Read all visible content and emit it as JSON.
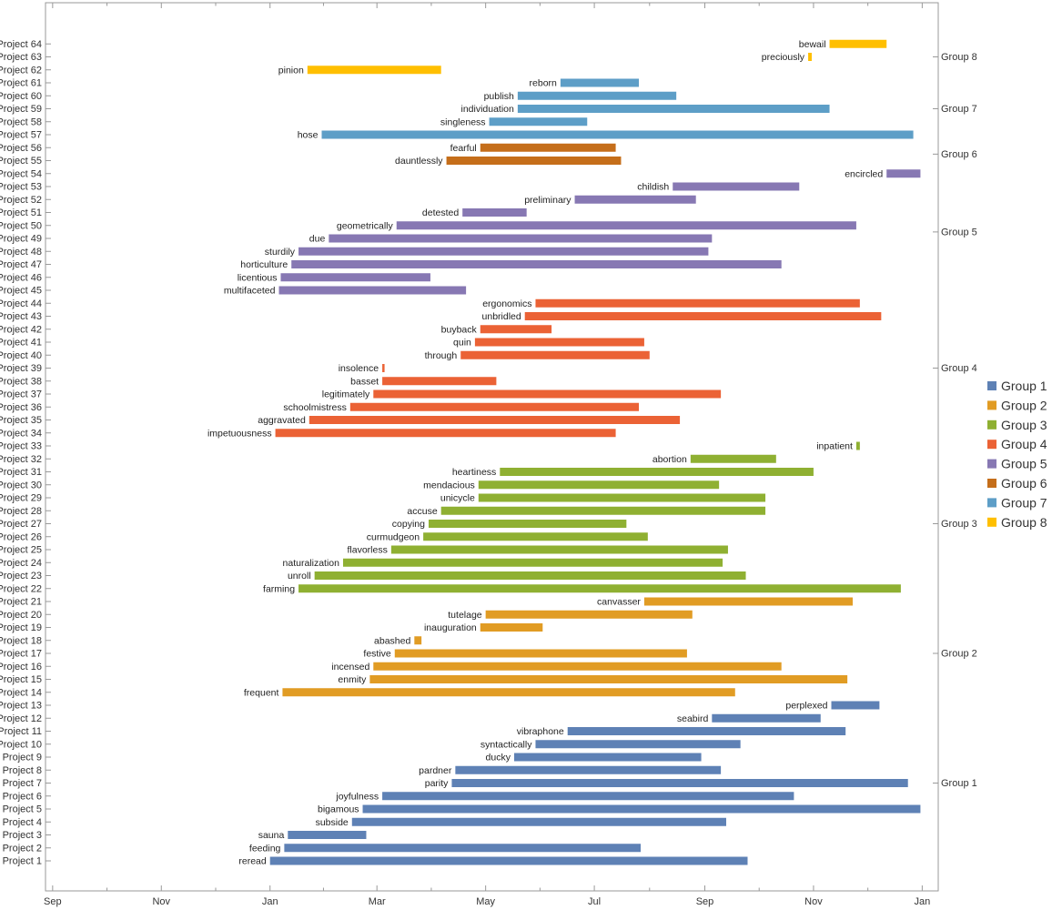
{
  "chart_data": {
    "type": "gantt",
    "title": "",
    "x_axis": {
      "type": "date",
      "range": [
        "2019-08-28",
        "2021-01-10"
      ],
      "tick_labels": [
        {
          "date": "2019-09-01",
          "label": "Sep"
        },
        {
          "date": "2019-11-01",
          "label": "Nov"
        },
        {
          "date": "2020-01-01",
          "label": "Jan"
        },
        {
          "date": "2020-03-01",
          "label": "Mar"
        },
        {
          "date": "2020-05-01",
          "label": "May"
        },
        {
          "date": "2020-07-01",
          "label": "Jul"
        },
        {
          "date": "2020-09-01",
          "label": "Sep"
        },
        {
          "date": "2020-11-01",
          "label": "Nov"
        },
        {
          "date": "2021-01-01",
          "label": "Jan"
        }
      ]
    },
    "groups": [
      {
        "name": "Group 1",
        "color": "#5e81b5"
      },
      {
        "name": "Group 2",
        "color": "#e19c24"
      },
      {
        "name": "Group 3",
        "color": "#8fb032"
      },
      {
        "name": "Group 4",
        "color": "#eb6235"
      },
      {
        "name": "Group 5",
        "color": "#8778b3"
      },
      {
        "name": "Group 6",
        "color": "#c56e1a"
      },
      {
        "name": "Group 7",
        "color": "#5d9ec7"
      },
      {
        "name": "Group 8",
        "color": "#ffbf00"
      }
    ],
    "tasks": [
      {
        "project": "Project 1",
        "label": "reread",
        "group": 1,
        "start": "2020-01-01",
        "end": "2020-09-25"
      },
      {
        "project": "Project 2",
        "label": "feeding",
        "group": 1,
        "start": "2020-01-09",
        "end": "2020-07-27"
      },
      {
        "project": "Project 3",
        "label": "sauna",
        "group": 1,
        "start": "2020-01-11",
        "end": "2020-02-24"
      },
      {
        "project": "Project 4",
        "label": "subside",
        "group": 1,
        "start": "2020-02-16",
        "end": "2020-09-13"
      },
      {
        "project": "Project 5",
        "label": "bigamous",
        "group": 1,
        "start": "2020-02-22",
        "end": "2020-12-31"
      },
      {
        "project": "Project 6",
        "label": "joyfulness",
        "group": 1,
        "start": "2020-03-04",
        "end": "2020-10-21"
      },
      {
        "project": "Project 7",
        "label": "parity",
        "group": 1,
        "start": "2020-04-12",
        "end": "2020-12-24"
      },
      {
        "project": "Project 8",
        "label": "pardner",
        "group": 1,
        "start": "2020-04-14",
        "end": "2020-09-10"
      },
      {
        "project": "Project 9",
        "label": "ducky",
        "group": 1,
        "start": "2020-05-17",
        "end": "2020-08-30"
      },
      {
        "project": "Project 10",
        "label": "syntactically",
        "group": 1,
        "start": "2020-05-29",
        "end": "2020-09-21"
      },
      {
        "project": "Project 11",
        "label": "vibraphone",
        "group": 1,
        "start": "2020-06-16",
        "end": "2020-11-19"
      },
      {
        "project": "Project 12",
        "label": "seabird",
        "group": 1,
        "start": "2020-09-05",
        "end": "2020-11-05"
      },
      {
        "project": "Project 13",
        "label": "perplexed",
        "group": 1,
        "start": "2020-11-11",
        "end": "2020-12-08"
      },
      {
        "project": "Project 14",
        "label": "frequent",
        "group": 2,
        "start": "2020-01-08",
        "end": "2020-09-18"
      },
      {
        "project": "Project 15",
        "label": "enmity",
        "group": 2,
        "start": "2020-02-26",
        "end": "2020-11-20"
      },
      {
        "project": "Project 16",
        "label": "incensed",
        "group": 2,
        "start": "2020-02-28",
        "end": "2020-10-14"
      },
      {
        "project": "Project 17",
        "label": "festive",
        "group": 2,
        "start": "2020-03-11",
        "end": "2020-08-22"
      },
      {
        "project": "Project 18",
        "label": "abashed",
        "group": 2,
        "start": "2020-03-22",
        "end": "2020-03-26"
      },
      {
        "project": "Project 19",
        "label": "inauguration",
        "group": 2,
        "start": "2020-04-28",
        "end": "2020-06-02"
      },
      {
        "project": "Project 20",
        "label": "tutelage",
        "group": 2,
        "start": "2020-05-01",
        "end": "2020-08-25"
      },
      {
        "project": "Project 21",
        "label": "canvasser",
        "group": 2,
        "start": "2020-07-29",
        "end": "2020-11-23"
      },
      {
        "project": "Project 22",
        "label": "farming",
        "group": 3,
        "start": "2020-01-17",
        "end": "2020-12-20"
      },
      {
        "project": "Project 23",
        "label": "unroll",
        "group": 3,
        "start": "2020-01-26",
        "end": "2020-09-24"
      },
      {
        "project": "Project 24",
        "label": "naturalization",
        "group": 3,
        "start": "2020-02-11",
        "end": "2020-09-11"
      },
      {
        "project": "Project 25",
        "label": "flavorless",
        "group": 3,
        "start": "2020-03-09",
        "end": "2020-09-14"
      },
      {
        "project": "Project 26",
        "label": "curmudgeon",
        "group": 3,
        "start": "2020-03-27",
        "end": "2020-07-31"
      },
      {
        "project": "Project 27",
        "label": "copying",
        "group": 3,
        "start": "2020-03-30",
        "end": "2020-07-19"
      },
      {
        "project": "Project 28",
        "label": "accuse",
        "group": 3,
        "start": "2020-04-06",
        "end": "2020-10-05"
      },
      {
        "project": "Project 29",
        "label": "unicycle",
        "group": 3,
        "start": "2020-04-27",
        "end": "2020-10-05"
      },
      {
        "project": "Project 30",
        "label": "mendacious",
        "group": 3,
        "start": "2020-04-27",
        "end": "2020-09-09"
      },
      {
        "project": "Project 31",
        "label": "heartiness",
        "group": 3,
        "start": "2020-05-09",
        "end": "2020-11-01"
      },
      {
        "project": "Project 32",
        "label": "abortion",
        "group": 3,
        "start": "2020-08-24",
        "end": "2020-10-11"
      },
      {
        "project": "Project 33",
        "label": "inpatient",
        "group": 3,
        "start": "2020-11-25",
        "end": "2020-11-27"
      },
      {
        "project": "Project 34",
        "label": "impetuousness",
        "group": 4,
        "start": "2020-01-04",
        "end": "2020-07-13"
      },
      {
        "project": "Project 35",
        "label": "aggravated",
        "group": 4,
        "start": "2020-01-23",
        "end": "2020-08-18"
      },
      {
        "project": "Project 36",
        "label": "schoolmistress",
        "group": 4,
        "start": "2020-02-15",
        "end": "2020-07-26"
      },
      {
        "project": "Project 37",
        "label": "legitimately",
        "group": 4,
        "start": "2020-02-28",
        "end": "2020-09-10"
      },
      {
        "project": "Project 38",
        "label": "basset",
        "group": 4,
        "start": "2020-03-04",
        "end": "2020-05-07"
      },
      {
        "project": "Project 39",
        "label": "insolence",
        "group": 4,
        "start": "2020-03-04",
        "end": "2020-03-05"
      },
      {
        "project": "Project 40",
        "label": "through",
        "group": 4,
        "start": "2020-04-17",
        "end": "2020-08-01"
      },
      {
        "project": "Project 41",
        "label": "quin",
        "group": 4,
        "start": "2020-04-25",
        "end": "2020-07-29"
      },
      {
        "project": "Project 42",
        "label": "buyback",
        "group": 4,
        "start": "2020-04-28",
        "end": "2020-06-07"
      },
      {
        "project": "Project 43",
        "label": "unbridled",
        "group": 4,
        "start": "2020-05-23",
        "end": "2020-12-09"
      },
      {
        "project": "Project 44",
        "label": "ergonomics",
        "group": 4,
        "start": "2020-05-29",
        "end": "2020-11-27"
      },
      {
        "project": "Project 45",
        "label": "multifaceted",
        "group": 5,
        "start": "2020-01-06",
        "end": "2020-04-20"
      },
      {
        "project": "Project 46",
        "label": "licentious",
        "group": 5,
        "start": "2020-01-07",
        "end": "2020-03-31"
      },
      {
        "project": "Project 47",
        "label": "horticulture",
        "group": 5,
        "start": "2020-01-13",
        "end": "2020-10-14"
      },
      {
        "project": "Project 48",
        "label": "sturdily",
        "group": 5,
        "start": "2020-01-17",
        "end": "2020-09-03"
      },
      {
        "project": "Project 49",
        "label": "due",
        "group": 5,
        "start": "2020-02-03",
        "end": "2020-09-05"
      },
      {
        "project": "Project 50",
        "label": "geometrically",
        "group": 5,
        "start": "2020-03-12",
        "end": "2020-11-25"
      },
      {
        "project": "Project 51",
        "label": "detested",
        "group": 5,
        "start": "2020-04-18",
        "end": "2020-05-24"
      },
      {
        "project": "Project 52",
        "label": "preliminary",
        "group": 5,
        "start": "2020-06-20",
        "end": "2020-08-27"
      },
      {
        "project": "Project 53",
        "label": "childish",
        "group": 5,
        "start": "2020-08-14",
        "end": "2020-10-24"
      },
      {
        "project": "Project 54",
        "label": "encircled",
        "group": 5,
        "start": "2020-12-12",
        "end": "2020-12-31"
      },
      {
        "project": "Project 55",
        "label": "dauntlessly",
        "group": 6,
        "start": "2020-04-09",
        "end": "2020-07-16"
      },
      {
        "project": "Project 56",
        "label": "fearful",
        "group": 6,
        "start": "2020-04-28",
        "end": "2020-07-13"
      },
      {
        "project": "Project 57",
        "label": "hose",
        "group": 7,
        "start": "2020-01-30",
        "end": "2020-12-27"
      },
      {
        "project": "Project 58",
        "label": "singleness",
        "group": 7,
        "start": "2020-05-03",
        "end": "2020-06-27"
      },
      {
        "project": "Project 59",
        "label": "individuation",
        "group": 7,
        "start": "2020-05-19",
        "end": "2020-11-10"
      },
      {
        "project": "Project 60",
        "label": "publish",
        "group": 7,
        "start": "2020-05-19",
        "end": "2020-08-16"
      },
      {
        "project": "Project 61",
        "label": "reborn",
        "group": 7,
        "start": "2020-06-12",
        "end": "2020-07-26"
      },
      {
        "project": "Project 62",
        "label": "pinion",
        "group": 8,
        "start": "2020-01-22",
        "end": "2020-04-06"
      },
      {
        "project": "Project 63",
        "label": "preciously",
        "group": 8,
        "start": "2020-10-29",
        "end": "2020-10-31"
      },
      {
        "project": "Project 64",
        "label": "bewail",
        "group": 8,
        "start": "2020-11-10",
        "end": "2020-12-12"
      }
    ],
    "right_axis_ticks": [
      {
        "label": "Group 1",
        "at_project": 7
      },
      {
        "label": "Group 2",
        "at_project": 17
      },
      {
        "label": "Group 3",
        "at_project": 27
      },
      {
        "label": "Group 4",
        "at_project": 39
      },
      {
        "label": "Group 5",
        "at_project": 49.5
      },
      {
        "label": "Group 6",
        "at_project": 55.5
      },
      {
        "label": "Group 7",
        "at_project": 59
      },
      {
        "label": "Group 8",
        "at_project": 63
      }
    ],
    "legend": {
      "position": "right",
      "items": [
        "Group 1",
        "Group 2",
        "Group 3",
        "Group 4",
        "Group 5",
        "Group 6",
        "Group 7",
        "Group 8"
      ]
    }
  }
}
